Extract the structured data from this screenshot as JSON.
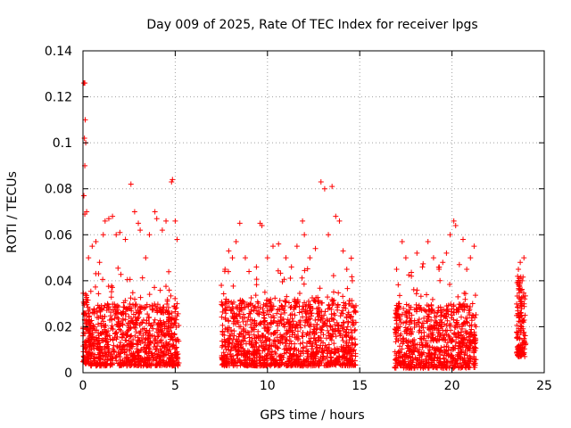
{
  "chart_data": {
    "type": "scatter",
    "title": "Day 009 of 2025, Rate Of TEC Index for receiver lpgs",
    "xlabel": "GPS time / hours",
    "ylabel": "ROTI / TECUs",
    "xlim": [
      0,
      25
    ],
    "ylim": [
      0,
      0.14
    ],
    "xticks": [
      0,
      5,
      10,
      15,
      20,
      25
    ],
    "yticks": [
      0,
      0.02,
      0.04,
      0.06,
      0.08,
      0.1,
      0.12,
      0.14
    ],
    "xtick_labels": [
      "0",
      "5",
      "10",
      "15",
      "20",
      "25"
    ],
    "ytick_labels": [
      "0",
      "0.02",
      "0.04",
      "0.06",
      "0.08",
      "0.1",
      "0.12",
      "0.14"
    ],
    "grid": true,
    "marker": "+",
    "color": "#ff0000",
    "series": [
      {
        "name": "ROTI",
        "points": [
          [
            0.05,
            0.126
          ],
          [
            0.1,
            0.126
          ],
          [
            0.12,
            0.11
          ],
          [
            0.08,
            0.102
          ],
          [
            0.15,
            0.1
          ],
          [
            0.1,
            0.09
          ],
          [
            0.05,
            0.077
          ],
          [
            0.1,
            0.069
          ],
          [
            0.2,
            0.07
          ],
          [
            0.3,
            0.05
          ],
          [
            0.5,
            0.055
          ],
          [
            0.7,
            0.057
          ],
          [
            0.9,
            0.048
          ],
          [
            1.1,
            0.06
          ],
          [
            1.2,
            0.066
          ],
          [
            1.4,
            0.067
          ],
          [
            1.6,
            0.068
          ],
          [
            1.8,
            0.06
          ],
          [
            2.0,
            0.061
          ],
          [
            2.3,
            0.058
          ],
          [
            2.6,
            0.082
          ],
          [
            2.8,
            0.07
          ],
          [
            3.0,
            0.065
          ],
          [
            3.1,
            0.062
          ],
          [
            3.4,
            0.05
          ],
          [
            3.6,
            0.06
          ],
          [
            3.9,
            0.07
          ],
          [
            4.0,
            0.067
          ],
          [
            4.3,
            0.062
          ],
          [
            4.5,
            0.066
          ],
          [
            4.8,
            0.083
          ],
          [
            4.85,
            0.084
          ],
          [
            5.0,
            0.066
          ],
          [
            5.1,
            0.058
          ],
          [
            5.1,
            0.03
          ],
          [
            7.5,
            0.038
          ],
          [
            7.7,
            0.045
          ],
          [
            7.9,
            0.053
          ],
          [
            8.1,
            0.05
          ],
          [
            8.3,
            0.057
          ],
          [
            8.5,
            0.065
          ],
          [
            8.8,
            0.05
          ],
          [
            9.0,
            0.044
          ],
          [
            9.4,
            0.046
          ],
          [
            9.6,
            0.065
          ],
          [
            9.7,
            0.064
          ],
          [
            10.0,
            0.05
          ],
          [
            10.3,
            0.055
          ],
          [
            10.6,
            0.056
          ],
          [
            11.0,
            0.05
          ],
          [
            11.3,
            0.046
          ],
          [
            11.6,
            0.055
          ],
          [
            11.9,
            0.066
          ],
          [
            12.0,
            0.06
          ],
          [
            12.3,
            0.05
          ],
          [
            12.6,
            0.054
          ],
          [
            12.9,
            0.083
          ],
          [
            13.1,
            0.08
          ],
          [
            13.3,
            0.06
          ],
          [
            13.5,
            0.081
          ],
          [
            13.7,
            0.068
          ],
          [
            13.9,
            0.066
          ],
          [
            14.1,
            0.053
          ],
          [
            14.3,
            0.045
          ],
          [
            14.6,
            0.04
          ],
          [
            14.7,
            0.01
          ],
          [
            17.0,
            0.045
          ],
          [
            17.3,
            0.057
          ],
          [
            17.5,
            0.05
          ],
          [
            17.8,
            0.042
          ],
          [
            18.1,
            0.052
          ],
          [
            18.4,
            0.046
          ],
          [
            18.7,
            0.057
          ],
          [
            19.0,
            0.05
          ],
          [
            19.3,
            0.045
          ],
          [
            19.5,
            0.048
          ],
          [
            19.7,
            0.052
          ],
          [
            19.9,
            0.06
          ],
          [
            20.1,
            0.066
          ],
          [
            20.2,
            0.064
          ],
          [
            20.4,
            0.047
          ],
          [
            20.6,
            0.058
          ],
          [
            20.8,
            0.045
          ],
          [
            21.0,
            0.05
          ],
          [
            21.2,
            0.055
          ],
          [
            21.3,
            0.02
          ],
          [
            23.6,
            0.045
          ],
          [
            23.7,
            0.048
          ],
          [
            23.8,
            0.04
          ],
          [
            23.9,
            0.05
          ],
          [
            23.65,
            0.007
          ]
        ],
        "segments": [
          {
            "start": 0.0,
            "end": 0.4,
            "base_low": 0.004,
            "base_high": 0.035,
            "count": 120
          },
          {
            "start": 0.4,
            "end": 5.2,
            "base_low": 0.003,
            "base_high": 0.03,
            "count": 900
          },
          {
            "start": 7.5,
            "end": 14.8,
            "base_low": 0.003,
            "base_high": 0.032,
            "count": 1300
          },
          {
            "start": 16.9,
            "end": 21.3,
            "base_low": 0.002,
            "base_high": 0.03,
            "count": 800
          },
          {
            "start": 23.5,
            "end": 24.0,
            "base_low": 0.007,
            "base_high": 0.042,
            "count": 140
          }
        ]
      }
    ]
  }
}
